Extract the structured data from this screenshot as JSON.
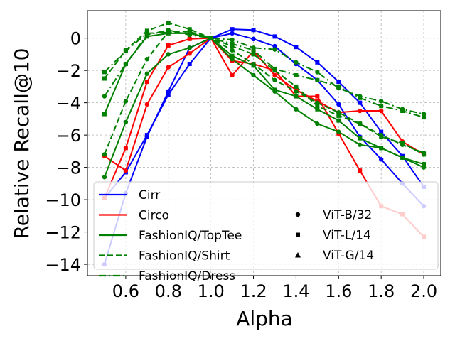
{
  "chart_data": {
    "type": "line",
    "title": "",
    "xlabel": "Alpha",
    "ylabel": "Relative Recall@10",
    "xlim": [
      0.42,
      2.08
    ],
    "ylim": [
      -14.7,
      1.7
    ],
    "xticks": [
      0.6,
      0.8,
      1.0,
      1.2,
      1.4,
      1.6,
      1.8,
      2.0
    ],
    "yticks": [
      0,
      -2,
      -4,
      -6,
      -8,
      -10,
      -12,
      -14
    ],
    "xtick_labels": [
      "0.6",
      "0.8",
      "1.0",
      "1.2",
      "1.4",
      "1.6",
      "1.8",
      "2.0"
    ],
    "ytick_labels": [
      "0",
      "−2",
      "−4",
      "−6",
      "−8",
      "−10",
      "−12",
      "−14"
    ],
    "grid": true,
    "legend_position": "bottom-right",
    "x": [
      0.5,
      0.6,
      0.7,
      0.8,
      0.9,
      1.0,
      1.1,
      1.2,
      1.3,
      1.4,
      1.5,
      1.6,
      1.7,
      1.8,
      1.9,
      2.0
    ],
    "legend": {
      "lines": [
        {
          "label": "Cirr",
          "color": "#0000ff",
          "style": "solid"
        },
        {
          "label": "Circo",
          "color": "#ff0000",
          "style": "solid"
        },
        {
          "label": "FashionIQ/TopTee",
          "color": "#008000",
          "style": "solid"
        },
        {
          "label": "FashionIQ/Shirt",
          "color": "#008000",
          "style": "dashed"
        },
        {
          "label": "FashionIQ/Dress",
          "color": "#008000",
          "style": "dashdot"
        }
      ],
      "markers": [
        {
          "label": "ViT-B/32",
          "marker": "circle"
        },
        {
          "label": "ViT-L/14",
          "marker": "square"
        },
        {
          "label": "ViT-G/14",
          "marker": "triangle"
        }
      ]
    },
    "series": [
      {
        "dataset": "Cirr",
        "model": "ViT-B/32",
        "color": "#0000ff",
        "style": "solid",
        "marker": "circle",
        "values": [
          -14.0,
          -9.6,
          -6.1,
          -3.3,
          -0.6,
          0.0,
          0.3,
          -0.05,
          -0.5,
          -1.6,
          -2.6,
          -4.1,
          -6.1,
          -7.5,
          -9.0,
          -10.4
        ]
      },
      {
        "dataset": "Cirr",
        "model": "ViT-L/14",
        "color": "#0000ff",
        "style": "solid",
        "marker": "square",
        "values": [
          -9.9,
          -8.3,
          -6.0,
          -3.5,
          -1.6,
          0.0,
          0.55,
          0.5,
          0.1,
          -0.55,
          -1.5,
          -2.7,
          -4.0,
          -5.8,
          -7.3,
          -9.2
        ]
      },
      {
        "dataset": "Circo",
        "model": "ViT-B/32",
        "color": "#ff0000",
        "style": "solid",
        "marker": "circle",
        "values": [
          -7.3,
          -8.2,
          -4.1,
          -1.8,
          -0.95,
          0.0,
          -2.3,
          -0.8,
          -2.3,
          -3.2,
          -3.9,
          -4.6,
          -4.5,
          -4.5,
          -6.4,
          -7.2
        ]
      },
      {
        "dataset": "Circo",
        "model": "ViT-L/14",
        "color": "#ff0000",
        "style": "solid",
        "marker": "square",
        "values": [
          -9.9,
          -6.8,
          -2.7,
          -0.45,
          -0.05,
          0.0,
          -1.4,
          -1.6,
          -2.0,
          -3.6,
          -3.6,
          -5.9,
          -8.2,
          -10.4,
          -10.9,
          -12.3
        ]
      },
      {
        "dataset": "FashionIQ/TopTee",
        "model": "ViT-B/32",
        "color": "#008000",
        "style": "solid",
        "marker": "circle",
        "values": [
          -8.6,
          -5.2,
          -2.2,
          -1.0,
          -0.6,
          0.0,
          -1.3,
          -2.3,
          -3.3,
          -4.4,
          -5.3,
          -5.8,
          -6.6,
          -6.8,
          -7.4,
          -8.0
        ]
      },
      {
        "dataset": "FashionIQ/TopTee",
        "model": "ViT-L/14",
        "color": "#008000",
        "style": "solid",
        "marker": "square",
        "values": [
          -4.7,
          -1.6,
          0.1,
          0.3,
          0.3,
          0.0,
          -1.1,
          -1.7,
          -3.2,
          -3.6,
          -4.4,
          -5.1,
          -6.2,
          -6.8,
          -7.4,
          -7.8
        ]
      },
      {
        "dataset": "FashionIQ/Shirt",
        "model": "ViT-B/32",
        "color": "#008000",
        "style": "dashed",
        "marker": "circle",
        "values": [
          -7.2,
          -3.9,
          -1.3,
          0.4,
          0.4,
          0.0,
          -0.75,
          -1.6,
          -2.6,
          -3.3,
          -4.0,
          -4.6,
          -5.3,
          -6.0,
          -6.6,
          -7.1
        ]
      },
      {
        "dataset": "FashionIQ/Shirt",
        "model": "ViT-L/14",
        "color": "#008000",
        "style": "dashed",
        "marker": "square",
        "values": [
          -2.5,
          -0.75,
          0.45,
          0.95,
          0.55,
          0.0,
          -0.5,
          -1.0,
          -2.0,
          -3.0,
          -4.2,
          -4.8,
          -5.3,
          -6.1,
          -6.5,
          -7.2
        ]
      },
      {
        "dataset": "FashionIQ/Dress",
        "model": "ViT-B/32",
        "color": "#008000",
        "style": "dashdot",
        "marker": "circle",
        "values": [
          -3.6,
          -1.6,
          0.2,
          0.5,
          0.2,
          0.0,
          -0.1,
          -0.6,
          -0.7,
          -1.5,
          -2.1,
          -3.1,
          -3.6,
          -3.9,
          -4.4,
          -4.7
        ]
      },
      {
        "dataset": "FashionIQ/Dress",
        "model": "ViT-L/14",
        "color": "#008000",
        "style": "dashdot",
        "marker": "square",
        "values": [
          -2.1,
          -0.8,
          0.3,
          0.35,
          0.3,
          0.0,
          -0.35,
          -0.75,
          -1.9,
          -2.3,
          -2.6,
          -3.0,
          -3.7,
          -4.2,
          -4.5,
          -4.9
        ]
      }
    ]
  }
}
